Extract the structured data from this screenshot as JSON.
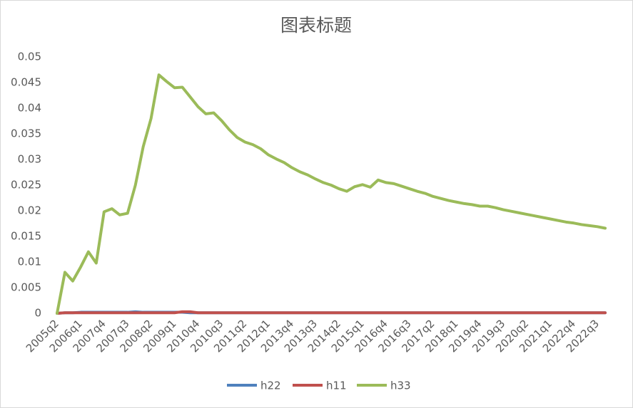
{
  "chart_data": {
    "type": "line",
    "title": "图表标题",
    "categories": [
      "2005q2",
      null,
      null,
      "2006q1",
      null,
      null,
      "2007q4",
      null,
      null,
      "2007q3",
      null,
      null,
      "2008q2",
      null,
      null,
      "2009q1",
      null,
      null,
      "2010q4",
      null,
      null,
      "2010q3",
      null,
      null,
      "2011q2",
      null,
      null,
      "2012q1",
      null,
      null,
      "2013q4",
      null,
      null,
      "2013q3",
      null,
      null,
      "2014q2",
      null,
      null,
      "2015q1",
      null,
      null,
      "2016q4",
      null,
      null,
      "2016q3",
      null,
      null,
      "2017q2",
      null,
      null,
      "2018q1",
      null,
      null,
      "2019q4",
      null,
      null,
      "2019q3",
      null,
      null,
      "2020q2",
      null,
      null,
      "2021q1",
      null,
      null,
      "2022q4",
      null,
      null,
      "2022q3",
      null
    ],
    "series": [
      {
        "name": "h22",
        "color": "#4f81bd",
        "values": [
          0,
          0.0001,
          0.0001,
          0.0002,
          0.0002,
          0.0002,
          0.0002,
          0.0002,
          0.0002,
          0.0002,
          0.0003,
          0.0002,
          0.0002,
          0.0002,
          0.0002,
          0.0002,
          0.0002,
          0.0001,
          0.0001,
          0.0001,
          0.0001,
          0.0001,
          0.0001,
          0.0001,
          0.0001,
          0.0001,
          0.0001,
          0.0001,
          0.0001,
          0.0001,
          0.0001,
          0.0001,
          0.0001,
          0.0001,
          0.0001,
          0.0001,
          0.0001,
          0.0001,
          0.0001,
          0.0001,
          0.0001,
          0.0001,
          0.0001,
          0.0001,
          0.0001,
          0.0001,
          0.0001,
          0.0001,
          0.0001,
          0.0001,
          0.0001,
          0.0001,
          0.0001,
          0.0001,
          0.0001,
          0.0001,
          0.0001,
          0.0001,
          0.0001,
          0.0001,
          0.0001,
          0.0001,
          0.0001,
          0.0001,
          0.0001,
          0.0001,
          0.0001,
          0.0001,
          0.0001,
          0.0001,
          0.0001
        ]
      },
      {
        "name": "h11",
        "color": "#c0504d",
        "values": [
          0,
          0.0001,
          0.0001,
          0.0001,
          0.0001,
          0.0001,
          0.0001,
          0.0001,
          0.0001,
          0.0001,
          0.0001,
          0.0001,
          0.0001,
          0.0001,
          0.0001,
          0.0001,
          0.0003,
          0.0003,
          0.0001,
          0.0001,
          0.0001,
          0.0001,
          0.0001,
          0.0001,
          0.0001,
          0.0001,
          0.0001,
          0.0001,
          0.0001,
          0.0001,
          0.0001,
          0.0001,
          0.0001,
          0.0001,
          0.0001,
          0.0001,
          0.0001,
          0.0001,
          0.0001,
          0.0001,
          0.0001,
          0.0001,
          0.0001,
          0.0001,
          0.0001,
          0.0001,
          0.0001,
          0.0001,
          0.0001,
          0.0001,
          0.0001,
          0.0001,
          0.0001,
          0.0001,
          0.0001,
          0.0001,
          0.0001,
          0.0001,
          0.0001,
          0.0001,
          0.0001,
          0.0001,
          0.0001,
          0.0001,
          0.0001,
          0.0001,
          0.0001,
          0.0001,
          0.0001,
          0.0001,
          0.0001
        ]
      },
      {
        "name": "h33",
        "color": "#9bbb59",
        "values": [
          0,
          0.008,
          0.0063,
          0.009,
          0.012,
          0.0098,
          0.0198,
          0.0204,
          0.0192,
          0.0195,
          0.025,
          0.0325,
          0.038,
          0.0465,
          0.0452,
          0.044,
          0.0441,
          0.0422,
          0.0403,
          0.0389,
          0.0391,
          0.0376,
          0.0358,
          0.0343,
          0.0334,
          0.0329,
          0.0321,
          0.0309,
          0.0301,
          0.0294,
          0.0284,
          0.0276,
          0.027,
          0.0262,
          0.0255,
          0.025,
          0.0243,
          0.0238,
          0.0247,
          0.0251,
          0.0246,
          0.026,
          0.0255,
          0.0253,
          0.0248,
          0.0243,
          0.0238,
          0.0234,
          0.0228,
          0.0224,
          0.022,
          0.0217,
          0.0214,
          0.0212,
          0.0209,
          0.0209,
          0.0206,
          0.0202,
          0.0199,
          0.0196,
          0.0193,
          0.019,
          0.0187,
          0.0184,
          0.0181,
          0.0178,
          0.0176,
          0.0173,
          0.0171,
          0.0169,
          0.0166
        ]
      }
    ],
    "ylim": [
      0,
      0.05
    ],
    "yticks": [
      0,
      0.005,
      0.01,
      0.015,
      0.02,
      0.025,
      0.03,
      0.035,
      0.04,
      0.045,
      0.05
    ],
    "grid": false
  }
}
